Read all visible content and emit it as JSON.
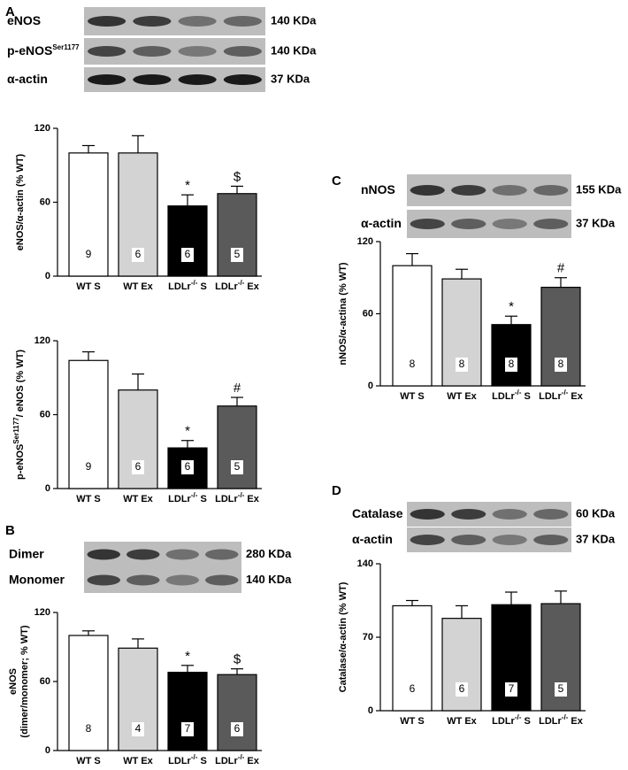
{
  "panels": [
    {
      "letter": "A",
      "blots": [
        {
          "label": [
            {
              "text": "eNOS"
            }
          ],
          "size": "140 KDa"
        },
        {
          "label": [
            {
              "text": "p-eNOS"
            },
            {
              "text": "Ser1177",
              "sup": true
            }
          ],
          "size": "140 KDa"
        },
        {
          "label": [
            {
              "text": "α-actin"
            }
          ],
          "size": "37 KDa"
        }
      ]
    },
    {
      "letter": "B",
      "blots": [
        {
          "label": [
            {
              "text": "Dimer"
            }
          ],
          "size": "280 KDa"
        },
        {
          "label": [
            {
              "text": "Monomer"
            }
          ],
          "size": "140 KDa"
        }
      ]
    },
    {
      "letter": "C",
      "blots": [
        {
          "label": [
            {
              "text": "nNOS"
            }
          ],
          "size": "155 KDa"
        },
        {
          "label": [
            {
              "text": "α-actin"
            }
          ],
          "size": "37 KDa"
        }
      ]
    },
    {
      "letter": "D",
      "blots": [
        {
          "label": [
            {
              "text": "Catalase"
            }
          ],
          "size": "60 KDa"
        },
        {
          "label": [
            {
              "text": "α-actin"
            }
          ],
          "size": "37 KDa"
        }
      ]
    }
  ],
  "chart_data": [
    {
      "type": "bar",
      "ylabel": [
        {
          "text": "eNOS/α-actin (% WT)"
        }
      ],
      "categories": [
        [
          {
            "text": "WT S"
          }
        ],
        [
          {
            "text": "WT Ex"
          }
        ],
        [
          {
            "text": "LDLr"
          },
          {
            "text": "-/-",
            "sup": true
          },
          {
            "text": " S"
          }
        ],
        [
          {
            "text": "LDLr"
          },
          {
            "text": "-/-",
            "sup": true
          },
          {
            "text": " Ex"
          }
        ]
      ],
      "values": [
        100,
        100,
        57,
        67
      ],
      "errors": [
        6,
        14,
        9,
        6
      ],
      "n": [
        9,
        6,
        6,
        5
      ],
      "markers": [
        null,
        null,
        "*",
        "$"
      ],
      "colors": [
        "#ffffff",
        "#d3d3d3",
        "#000000",
        "#5a5a5a"
      ],
      "ylim": [
        0,
        120
      ],
      "yticks": [
        0,
        60,
        120
      ]
    },
    {
      "type": "bar",
      "ylabel": [
        {
          "text": "p-eNOS"
        },
        {
          "text": "Ser1177",
          "sup": true
        },
        {
          "text": "/ eNOS (% WT)"
        }
      ],
      "categories": [
        [
          {
            "text": "WT S"
          }
        ],
        [
          {
            "text": "WT Ex"
          }
        ],
        [
          {
            "text": "LDLr"
          },
          {
            "text": "-/-",
            "sup": true
          },
          {
            "text": " S"
          }
        ],
        [
          {
            "text": "LDLr"
          },
          {
            "text": "-/-",
            "sup": true
          },
          {
            "text": " Ex"
          }
        ]
      ],
      "values": [
        104,
        80,
        33,
        67
      ],
      "errors": [
        7,
        13,
        6,
        7
      ],
      "n": [
        9,
        6,
        6,
        5
      ],
      "markers": [
        null,
        null,
        "*",
        "#"
      ],
      "colors": [
        "#ffffff",
        "#d3d3d3",
        "#000000",
        "#5a5a5a"
      ],
      "ylim": [
        0,
        120
      ],
      "yticks": [
        0,
        60,
        120
      ]
    },
    {
      "type": "bar",
      "ylabel": [
        {
          "text": "eNOS"
        },
        {
          "text": "(dimer/monomer; % WT)",
          "newline": true
        }
      ],
      "categories": [
        [
          {
            "text": "WT S"
          }
        ],
        [
          {
            "text": "WT Ex"
          }
        ],
        [
          {
            "text": "LDLr"
          },
          {
            "text": "-/-",
            "sup": true
          },
          {
            "text": " S"
          }
        ],
        [
          {
            "text": "LDLr"
          },
          {
            "text": "-/-",
            "sup": true
          },
          {
            "text": " Ex"
          }
        ]
      ],
      "values": [
        100,
        89,
        68,
        66
      ],
      "errors": [
        4,
        8,
        6,
        5
      ],
      "n": [
        8,
        4,
        7,
        6
      ],
      "markers": [
        null,
        null,
        "*",
        "$"
      ],
      "colors": [
        "#ffffff",
        "#d3d3d3",
        "#000000",
        "#5a5a5a"
      ],
      "ylim": [
        0,
        120
      ],
      "yticks": [
        0,
        60,
        120
      ]
    },
    {
      "type": "bar",
      "ylabel": [
        {
          "text": "nNOS/α-actina (% WT)"
        }
      ],
      "categories": [
        [
          {
            "text": "WT S"
          }
        ],
        [
          {
            "text": "WT Ex"
          }
        ],
        [
          {
            "text": "LDLr"
          },
          {
            "text": "-/-",
            "sup": true
          },
          {
            "text": " S"
          }
        ],
        [
          {
            "text": "LDLr"
          },
          {
            "text": "-/-",
            "sup": true
          },
          {
            "text": " Ex"
          }
        ]
      ],
      "values": [
        100,
        89,
        51,
        82
      ],
      "errors": [
        10,
        8,
        7,
        8
      ],
      "n": [
        8,
        8,
        8,
        8
      ],
      "markers": [
        null,
        null,
        "*",
        "#"
      ],
      "colors": [
        "#ffffff",
        "#d3d3d3",
        "#000000",
        "#5a5a5a"
      ],
      "ylim": [
        0,
        120
      ],
      "yticks": [
        0,
        60,
        120
      ]
    },
    {
      "type": "bar",
      "ylabel": [
        {
          "text": "Catalase/α-actin (% WT)"
        }
      ],
      "categories": [
        [
          {
            "text": "WT S"
          }
        ],
        [
          {
            "text": "WT Ex"
          }
        ],
        [
          {
            "text": "LDLr"
          },
          {
            "text": "-/-",
            "sup": true
          },
          {
            "text": " S"
          }
        ],
        [
          {
            "text": "LDLr"
          },
          {
            "text": "-/-",
            "sup": true
          },
          {
            "text": " Ex"
          }
        ]
      ],
      "values": [
        100,
        88,
        101,
        102
      ],
      "errors": [
        5,
        12,
        12,
        12
      ],
      "n": [
        6,
        6,
        7,
        5
      ],
      "markers": [
        null,
        null,
        null,
        null
      ],
      "colors": [
        "#ffffff",
        "#d3d3d3",
        "#000000",
        "#5a5a5a"
      ],
      "ylim": [
        0,
        140
      ],
      "yticks": [
        0,
        70,
        140
      ]
    }
  ]
}
